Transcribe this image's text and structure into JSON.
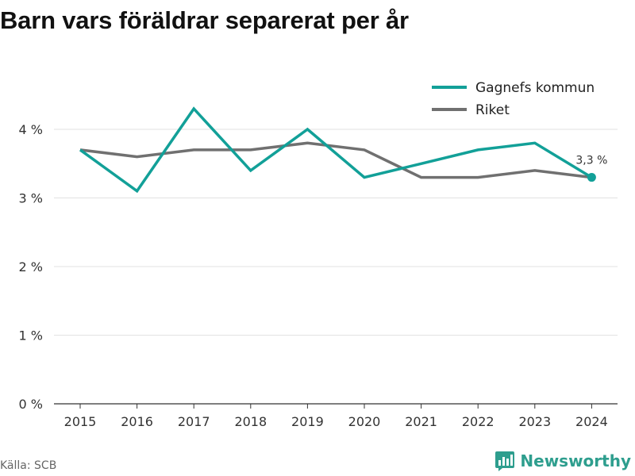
{
  "page": {
    "source_label": "Källa: SCB",
    "brand": {
      "name": "Newsworthy",
      "icon": "bar-chart-logo-icon",
      "color": "#2e9e8e"
    }
  },
  "chart_data": {
    "type": "line",
    "title": "Barn vars föräldrar separerat per år",
    "x": [
      "2015",
      "2016",
      "2017",
      "2018",
      "2019",
      "2020",
      "2021",
      "2022",
      "2023",
      "2024"
    ],
    "series": [
      {
        "name": "Gagnefs kommun",
        "color": "#12a098",
        "values": [
          3.7,
          3.1,
          4.3,
          3.4,
          4.0,
          3.3,
          3.5,
          3.7,
          3.8,
          3.3
        ]
      },
      {
        "name": "Riket",
        "color": "#707070",
        "values": [
          3.7,
          3.6,
          3.7,
          3.7,
          3.8,
          3.7,
          3.3,
          3.3,
          3.4,
          3.3
        ]
      }
    ],
    "ylim": [
      0,
      4
    ],
    "yticks": [
      0,
      1,
      2,
      3,
      4
    ],
    "ytick_labels": [
      "0 %",
      "1 %",
      "2 %",
      "3 %",
      "4 %"
    ],
    "grid": true,
    "legend_position": "top-right",
    "last_point_label": "3,3 %",
    "xlabel": "",
    "ylabel": ""
  }
}
